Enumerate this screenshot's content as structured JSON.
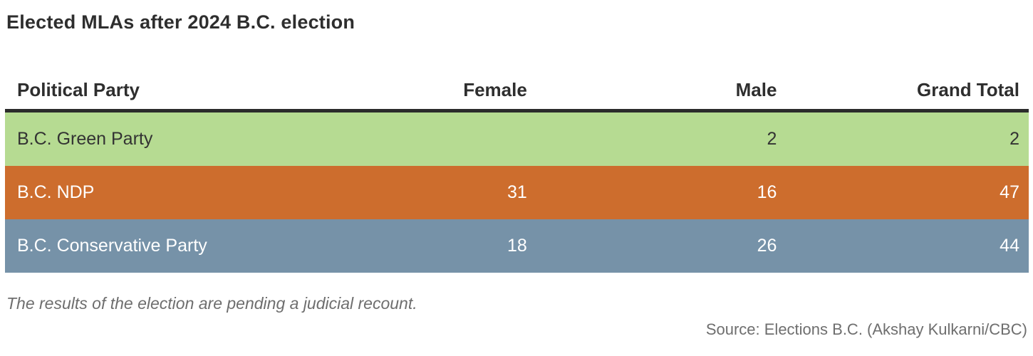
{
  "title": "Elected MLAs after 2024 B.C. election",
  "footnote": "The results of the election are pending a judicial recount.",
  "source": "Source: Elections B.C. (Akshay Kulkarni/CBC)",
  "colors": {
    "title_text": "#2e2e2e",
    "header_rule": "#2b2b2b",
    "muted_text": "#6e6e6e",
    "green_row_bg": "#b6db92",
    "ndp_row_bg": "#cd6d2d",
    "conservative_row_bg": "#7692a8",
    "dark_row_text": "#333333",
    "light_row_text": "#ffffff"
  },
  "chart_data": {
    "type": "table",
    "title": "Elected MLAs after 2024 B.C. election",
    "columns": [
      "Political Party",
      "Female",
      "Male",
      "Grand Total"
    ],
    "rows": [
      {
        "cells": [
          "B.C. Green Party",
          "",
          "2",
          "2"
        ],
        "bg": "#b6db92",
        "fg": "#333333"
      },
      {
        "cells": [
          "B.C. NDP",
          "31",
          "16",
          "47"
        ],
        "bg": "#cd6d2d",
        "fg": "#ffffff"
      },
      {
        "cells": [
          "B.C. Conservative Party",
          "18",
          "26",
          "44"
        ],
        "bg": "#7692a8",
        "fg": "#ffffff"
      }
    ],
    "footnote": "The results of the election are pending a judicial recount.",
    "source": "Source: Elections B.C. (Akshay Kulkarni/CBC)"
  }
}
